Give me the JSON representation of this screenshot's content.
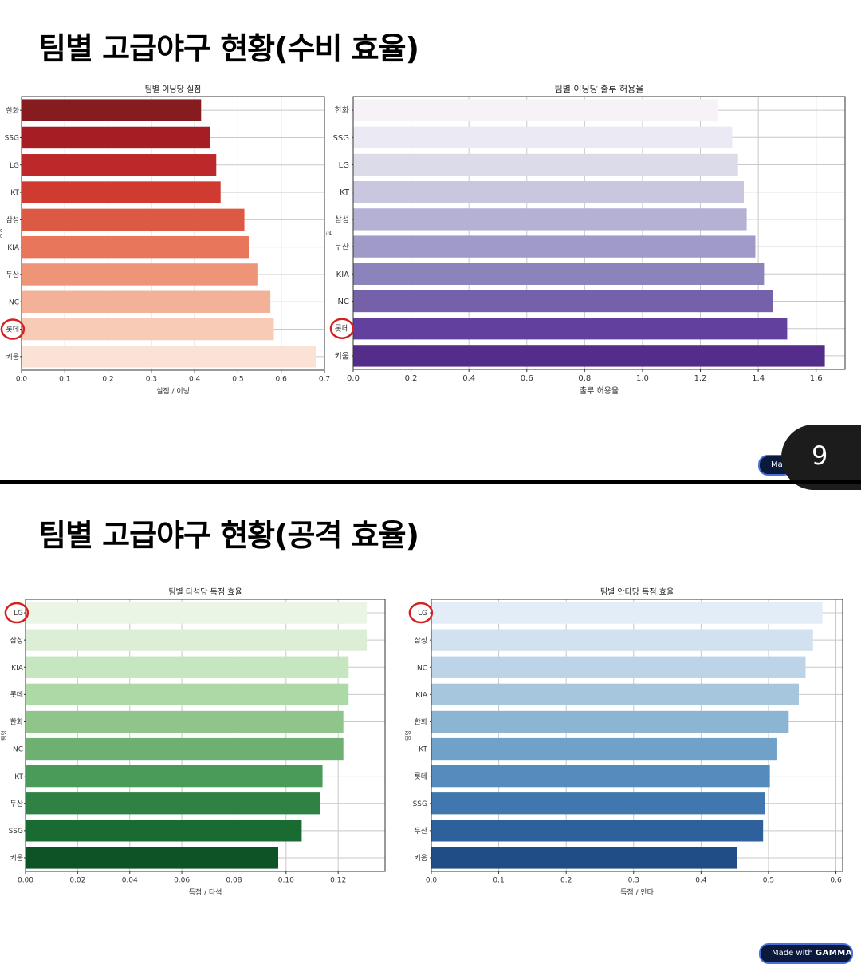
{
  "sections": [
    {
      "title": "팀별 고급야구 현황(수비 효율)"
    },
    {
      "title": "팀별 고급야구 현황(공격 효율)"
    }
  ],
  "page_number": "9",
  "badge_top": {
    "made": "Ma"
  },
  "badge_bottom": {
    "made": "Made with ",
    "brand": "GAMMA"
  },
  "colors": {
    "highlight_circle": "#d42020",
    "page_tab": "#1c1c1c",
    "badge": "#0b1a3c"
  },
  "chart_data": [
    {
      "type": "bar",
      "orientation": "horizontal",
      "title": "팀별 이닝당 실점",
      "xlabel": "실점 / 이닝",
      "ylabel": "팀명",
      "categories": [
        "한화",
        "SSG",
        "LG",
        "KT",
        "삼성",
        "KIA",
        "두산",
        "NC",
        "롯데",
        "키움"
      ],
      "values": [
        0.415,
        0.435,
        0.45,
        0.46,
        0.515,
        0.525,
        0.545,
        0.575,
        0.583,
        0.68
      ],
      "xlim": [
        0,
        0.7
      ],
      "xticks": [
        "0.0",
        "0.1",
        "0.2",
        "0.3",
        "0.4",
        "0.5",
        "0.6",
        "0.7"
      ],
      "colors": [
        "#861b20",
        "#a61e23",
        "#bd282a",
        "#cf3b30",
        "#dc5a43",
        "#e7765a",
        "#ee9477",
        "#f3b197",
        "#f7cbb6",
        "#fbe2d6"
      ],
      "grid": true,
      "highlight": "롯데"
    },
    {
      "type": "bar",
      "orientation": "horizontal",
      "title": "팀별 이닝당 출루 허용율",
      "xlabel": "출루 허용율",
      "ylabel": "팀",
      "categories": [
        "한화",
        "SSG",
        "LG",
        "KT",
        "삼성",
        "두산",
        "KIA",
        "NC",
        "롯데",
        "키움"
      ],
      "values": [
        1.26,
        1.31,
        1.33,
        1.35,
        1.36,
        1.39,
        1.42,
        1.45,
        1.5,
        1.63
      ],
      "xlim": [
        0,
        1.7
      ],
      "xticks": [
        "0.0",
        "0.2",
        "0.4",
        "0.6",
        "0.8",
        "1.0",
        "1.2",
        "1.4",
        "1.6"
      ],
      "colors": [
        "#f6f2f8",
        "#ebe9f3",
        "#dcdbea",
        "#c9c7e0",
        "#b4b1d5",
        "#9f9ac8",
        "#8a83bc",
        "#7561a9",
        "#62409d",
        "#542c8a"
      ],
      "grid": true,
      "highlight": "롯데"
    },
    {
      "type": "bar",
      "orientation": "horizontal",
      "title": "팀별 타석당 득점 효율",
      "xlabel": "득점 / 타석",
      "ylabel": "팀명",
      "categories": [
        "LG",
        "삼성",
        "KIA",
        "롯데",
        "한화",
        "NC",
        "KT",
        "두산",
        "SSG",
        "키움"
      ],
      "values": [
        0.131,
        0.131,
        0.124,
        0.124,
        0.122,
        0.122,
        0.114,
        0.113,
        0.106,
        0.097
      ],
      "xlim": [
        0,
        0.138
      ],
      "xticks": [
        "0.00",
        "0.02",
        "0.04",
        "0.06",
        "0.08",
        "0.10",
        "0.12"
      ],
      "colors": [
        "#eaf5e5",
        "#dcefd6",
        "#c6e6bf",
        "#add9a6",
        "#8fc58a",
        "#6eb072",
        "#4a9a5a",
        "#2f8244",
        "#1a6b32",
        "#0d5326"
      ],
      "grid": true,
      "highlight": "LG"
    },
    {
      "type": "bar",
      "orientation": "horizontal",
      "title": "팀별 안타당 득점 효율",
      "xlabel": "득점 / 안타",
      "ylabel": "팀명",
      "categories": [
        "LG",
        "삼성",
        "NC",
        "KIA",
        "한화",
        "KT",
        "롯데",
        "SSG",
        "두산",
        "키움"
      ],
      "values": [
        0.58,
        0.566,
        0.555,
        0.545,
        0.53,
        0.513,
        0.502,
        0.495,
        0.492,
        0.453
      ],
      "xlim": [
        0,
        0.61
      ],
      "xticks": [
        "0.0",
        "0.1",
        "0.2",
        "0.3",
        "0.4",
        "0.5",
        "0.6"
      ],
      "colors": [
        "#e3edf7",
        "#d1e1ef",
        "#bdd4e8",
        "#a6c6de",
        "#8cb5d4",
        "#6fa1c9",
        "#538cbd",
        "#3f77ae",
        "#2e619b",
        "#204d86"
      ],
      "grid": true,
      "highlight": "LG"
    }
  ]
}
